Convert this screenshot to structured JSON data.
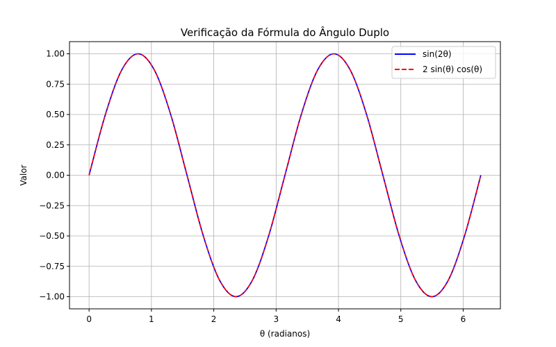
{
  "chart_data": {
    "type": "line",
    "title": "Verificação da Fórmula do Ângulo Duplo",
    "xlabel": "θ (radianos)",
    "ylabel": "Valor",
    "xlim": [
      -0.314,
      6.597
    ],
    "ylim": [
      -1.1,
      1.1
    ],
    "x_ticks": [
      0,
      1,
      2,
      3,
      4,
      5,
      6
    ],
    "x_tick_labels": [
      "0",
      "1",
      "2",
      "3",
      "4",
      "5",
      "6"
    ],
    "y_ticks": [
      -1.0,
      -0.75,
      -0.5,
      -0.25,
      0.0,
      0.25,
      0.5,
      0.75,
      1.0
    ],
    "y_tick_labels": [
      "−1.00",
      "−0.75",
      "−0.50",
      "−0.25",
      "0.00",
      "0.25",
      "0.50",
      "0.75",
      "1.00"
    ],
    "grid": true,
    "legend_position": "top-right",
    "x": [
      0,
      0.2618,
      0.5236,
      0.7854,
      1.0472,
      1.309,
      1.5708,
      1.8326,
      2.0944,
      2.3562,
      2.618,
      2.8798,
      3.1416,
      3.4034,
      3.6652,
      3.927,
      4.1888,
      4.4506,
      4.7124,
      4.9742,
      5.236,
      5.4978,
      5.7596,
      6.0214,
      6.2832
    ],
    "series": [
      {
        "name": "sin(2θ)",
        "color": "#0000ff",
        "style": "solid",
        "values": [
          0,
          0.5,
          0.866,
          1,
          0.866,
          0.5,
          0,
          -0.5,
          -0.866,
          -1,
          -0.866,
          -0.5,
          0,
          0.5,
          0.866,
          1,
          0.866,
          0.5,
          0,
          -0.5,
          -0.866,
          -1,
          -0.866,
          -0.5,
          0
        ]
      },
      {
        "name": "2 sin(θ) cos(θ)",
        "color": "#ff0000",
        "style": "dashed",
        "values": [
          0,
          0.5,
          0.866,
          1,
          0.866,
          0.5,
          0,
          -0.5,
          -0.866,
          -1,
          -0.866,
          -0.5,
          0,
          0.5,
          0.866,
          1,
          0.866,
          0.5,
          0,
          -0.5,
          -0.866,
          -1,
          -0.866,
          -0.5,
          0
        ]
      }
    ]
  }
}
